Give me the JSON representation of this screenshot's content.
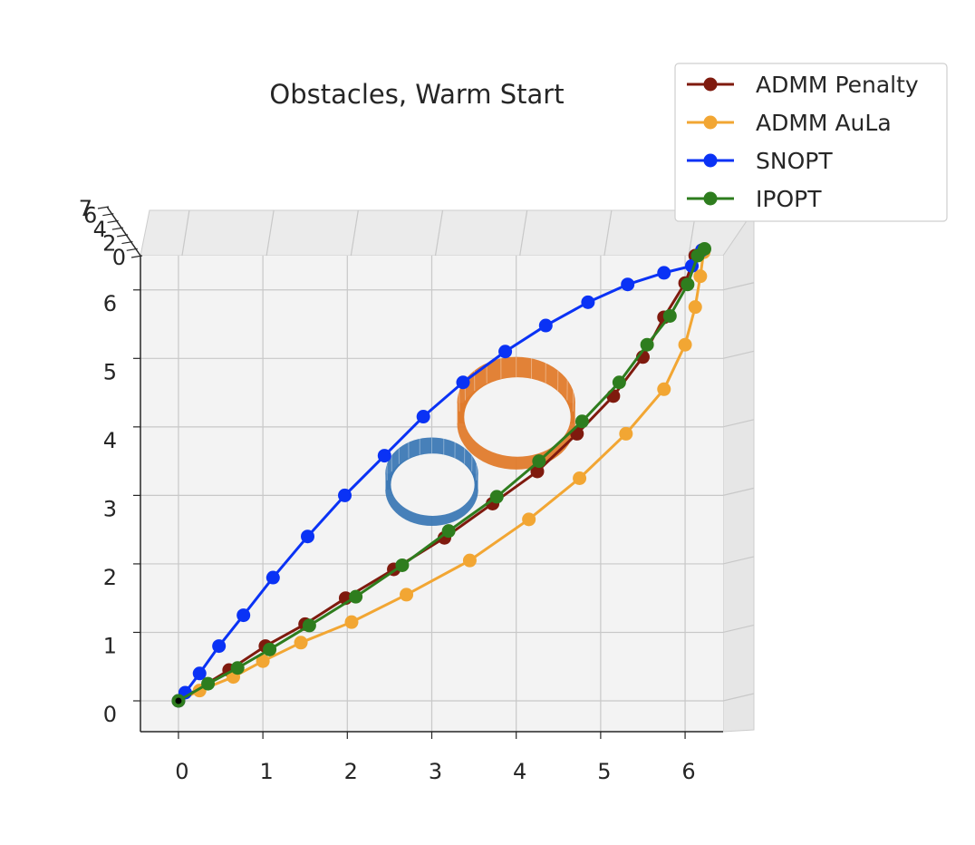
{
  "chart_data": {
    "type": "line",
    "title": "Obstacles, Warm Start",
    "xlim": [
      -0.45,
      6.45
    ],
    "ylim": [
      -0.45,
      6.5
    ],
    "xticks": [
      "0",
      "1",
      "2",
      "3",
      "4",
      "5",
      "6"
    ],
    "yticks": [
      "0",
      "1",
      "2",
      "3",
      "4",
      "5",
      "6"
    ],
    "zticks": [
      "0",
      "1",
      "2",
      "3",
      "4",
      "5",
      "6",
      "7"
    ],
    "grid": true,
    "legend_position": "top-right",
    "series": [
      {
        "name": "ADMM Penalty",
        "color": "#7f1a0e",
        "x": [
          0,
          0.6,
          1.03,
          1.5,
          1.98,
          2.55,
          3.15,
          3.72,
          4.25,
          4.72,
          5.15,
          5.5,
          5.75,
          6.0,
          6.12,
          6.2
        ],
        "y": [
          0,
          0.45,
          0.8,
          1.12,
          1.5,
          1.92,
          2.38,
          2.88,
          3.35,
          3.9,
          4.45,
          5.02,
          5.6,
          6.1,
          6.5,
          6.58
        ]
      },
      {
        "name": "ADMM AuLa",
        "color": "#f2a633",
        "x": [
          0,
          0.25,
          0.65,
          1.0,
          1.45,
          2.05,
          2.7,
          3.45,
          4.15,
          4.75,
          5.3,
          5.75,
          6.0,
          6.12,
          6.18,
          6.22
        ],
        "y": [
          0,
          0.15,
          0.35,
          0.58,
          0.85,
          1.15,
          1.55,
          2.05,
          2.65,
          3.25,
          3.9,
          4.55,
          5.2,
          5.75,
          6.2,
          6.55
        ]
      },
      {
        "name": "SNOPT",
        "color": "#0a32f5",
        "x": [
          0,
          0.08,
          0.25,
          0.48,
          0.77,
          1.12,
          1.53,
          1.97,
          2.44,
          2.9,
          3.37,
          3.87,
          4.35,
          4.85,
          5.32,
          5.75,
          6.08,
          6.2
        ],
        "y": [
          0,
          0.12,
          0.4,
          0.8,
          1.25,
          1.8,
          2.4,
          3.0,
          3.58,
          4.15,
          4.65,
          5.1,
          5.48,
          5.82,
          6.08,
          6.25,
          6.35,
          6.58
        ]
      },
      {
        "name": "IPOPT",
        "color": "#2e7d1e",
        "x": [
          0,
          0.35,
          0.7,
          1.08,
          1.55,
          2.1,
          2.65,
          3.2,
          3.77,
          4.27,
          4.78,
          5.22,
          5.55,
          5.82,
          6.03,
          6.15,
          6.23
        ],
        "y": [
          0,
          0.25,
          0.48,
          0.75,
          1.1,
          1.52,
          1.98,
          2.48,
          2.98,
          3.5,
          4.08,
          4.65,
          5.2,
          5.62,
          6.08,
          6.5,
          6.6
        ]
      }
    ],
    "obstacles": [
      {
        "name": "obstacle-blue",
        "color": "#3d79b5",
        "center": [
          3.0,
          3.2
        ],
        "radius": 0.55
      },
      {
        "name": "obstacle-orange",
        "color": "#e07b2c",
        "center": [
          4.0,
          4.2
        ],
        "radius": 0.7
      }
    ]
  }
}
